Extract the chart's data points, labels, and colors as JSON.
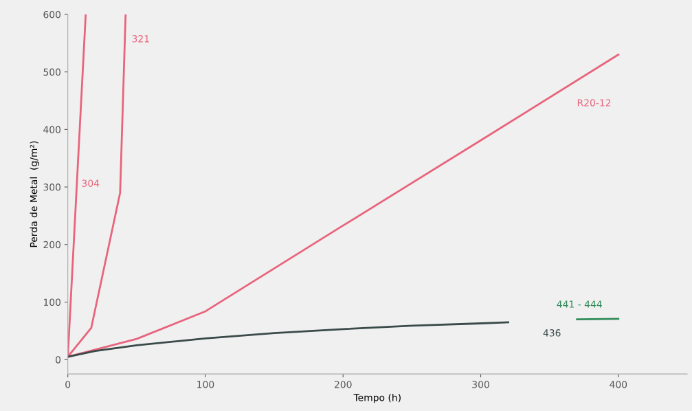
{
  "chart_data": {
    "type": "line",
    "xlabel": "Tempo (h)",
    "ylabel": "Perda de Metal  (g/m²)",
    "xlim": [
      0,
      450
    ],
    "ylim": [
      -25,
      600
    ],
    "xticks": [
      0,
      100,
      200,
      300,
      400
    ],
    "yticks": [
      0,
      100,
      200,
      300,
      400,
      500,
      600
    ],
    "grid": false,
    "legend": false,
    "marker": "none",
    "line_style": "solid",
    "series": [
      {
        "name": "304",
        "color": "#e8647c",
        "x": [
          0,
          13
        ],
        "values": [
          5,
          600
        ]
      },
      {
        "name": "321",
        "color": "#e8647c",
        "x": [
          0,
          17,
          38,
          42
        ],
        "values": [
          5,
          55,
          290,
          600
        ]
      },
      {
        "name": "R20-12",
        "color": "#e8647c",
        "x": [
          0,
          50,
          100,
          200,
          300,
          400
        ],
        "values": [
          5,
          36,
          84,
          233,
          381,
          530
        ]
      },
      {
        "name": "436",
        "color": "#3a4a48",
        "x": [
          0,
          20,
          50,
          100,
          150,
          200,
          250,
          300,
          320
        ],
        "values": [
          5,
          15,
          25,
          37,
          46,
          53,
          59,
          63,
          65
        ]
      },
      {
        "name": "441 - 444",
        "color": "#2e8b57",
        "x": [
          370,
          400
        ],
        "values": [
          70,
          71
        ]
      }
    ]
  }
}
